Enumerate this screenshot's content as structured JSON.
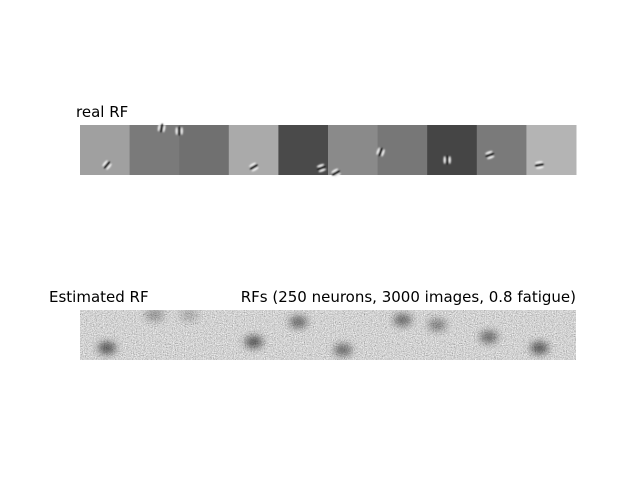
{
  "real_row": {
    "title": "real RF"
  },
  "estimated_row": {
    "title": "Estimated RF",
    "subtitle": "RFs (250 neurons, 3000 images, 0.8 fatigue)"
  }
}
